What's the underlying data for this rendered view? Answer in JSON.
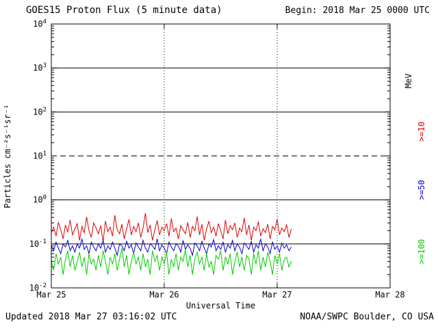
{
  "header": {
    "title": "GOES15 Proton Flux (5 minute data)",
    "begin_label": "Begin: 2018 Mar 25 0000 UTC"
  },
  "footer": {
    "updated": "Updated 2018 Mar 27 03:16:02 UTC",
    "credit": "NOAA/SWPC Boulder, CO USA"
  },
  "axes": {
    "x_title": "Universal Time",
    "y_title": "Particles  cm⁻²s⁻¹sr⁻¹",
    "x_ticks": [
      "Mar 25",
      "Mar 26",
      "Mar 27",
      "Mar 28"
    ],
    "y_tick_exponents": [
      4,
      3,
      2,
      1,
      0,
      -1,
      -2
    ]
  },
  "right_labels": [
    {
      "text": "MeV",
      "color": "#000000"
    },
    {
      "text": ">=10",
      "color": "#dd0000"
    },
    {
      "text": ">=50",
      "color": "#0000cc"
    },
    {
      "text": ">=100",
      "color": "#00cc00"
    }
  ],
  "chart_data": {
    "type": "line",
    "title": "GOES15 Proton Flux (5 minute data)",
    "xlabel": "Universal Time",
    "ylabel": "Particles cm^-2 s^-1 sr^-1",
    "x_axis_start": "2018 Mar 25 0000 UTC",
    "x_axis_end": "2018 Mar 28 0000 UTC",
    "data_end": "2018 Mar 27 03:16 UTC",
    "y_scale": "log",
    "ylim": [
      0.01,
      10000
    ],
    "sample_interval_minutes": 30,
    "gridlines": {
      "solid_at": [
        1000,
        100,
        1,
        0.1
      ],
      "dashed_at": [
        10
      ],
      "vertical_dotted_day_offsets": [
        1,
        2
      ]
    },
    "series": [
      {
        "name": ">=10 MeV",
        "color": "#dd0000",
        "values": [
          0.18,
          0.24,
          0.15,
          0.31,
          0.21,
          0.13,
          0.27,
          0.19,
          0.35,
          0.16,
          0.22,
          0.29,
          0.12,
          0.25,
          0.18,
          0.41,
          0.2,
          0.14,
          0.3,
          0.23,
          0.17,
          0.26,
          0.11,
          0.33,
          0.19,
          0.24,
          0.15,
          0.45,
          0.21,
          0.17,
          0.28,
          0.13,
          0.22,
          0.36,
          0.16,
          0.25,
          0.19,
          0.3,
          0.14,
          0.23,
          0.5,
          0.18,
          0.27,
          0.12,
          0.21,
          0.34,
          0.16,
          0.24,
          0.2,
          0.29,
          0.15,
          0.38,
          0.19,
          0.23,
          0.13,
          0.26,
          0.21,
          0.17,
          0.31,
          0.14,
          0.25,
          0.2,
          0.42,
          0.16,
          0.28,
          0.12,
          0.22,
          0.33,
          0.18,
          0.24,
          0.15,
          0.29,
          0.2,
          0.13,
          0.35,
          0.17,
          0.26,
          0.21,
          0.3,
          0.14,
          0.23,
          0.19,
          0.39,
          0.16,
          0.27,
          0.12,
          0.24,
          0.2,
          0.32,
          0.15,
          0.22,
          0.18,
          0.28,
          0.13,
          0.25,
          0.21,
          0.36,
          0.16,
          0.23,
          0.19,
          0.27,
          0.14,
          0.22
        ]
      },
      {
        "name": ">=50 MeV",
        "color": "#0000cc",
        "values": [
          0.09,
          0.07,
          0.11,
          0.08,
          0.06,
          0.1,
          0.085,
          0.12,
          0.07,
          0.09,
          0.065,
          0.1,
          0.08,
          0.13,
          0.075,
          0.09,
          0.06,
          0.11,
          0.085,
          0.07,
          0.1,
          0.08,
          0.12,
          0.065,
          0.09,
          0.075,
          0.11,
          0.08,
          0.055,
          0.1,
          0.09,
          0.07,
          0.115,
          0.08,
          0.095,
          0.06,
          0.105,
          0.085,
          0.07,
          0.12,
          0.08,
          0.065,
          0.1,
          0.09,
          0.075,
          0.13,
          0.07,
          0.095,
          0.08,
          0.06,
          0.11,
          0.085,
          0.07,
          0.1,
          0.09,
          0.065,
          0.12,
          0.075,
          0.095,
          0.08,
          0.055,
          0.105,
          0.09,
          0.07,
          0.115,
          0.08,
          0.06,
          0.1,
          0.085,
          0.125,
          0.07,
          0.09,
          0.075,
          0.11,
          0.065,
          0.095,
          0.08,
          0.12,
          0.07,
          0.1,
          0.085,
          0.06,
          0.105,
          0.09,
          0.075,
          0.115,
          0.065,
          0.095,
          0.08,
          0.13,
          0.07,
          0.1,
          0.085,
          0.06,
          0.11,
          0.075,
          0.09,
          0.065,
          0.105,
          0.08,
          0.095,
          0.07,
          0.085
        ]
      },
      {
        "name": ">=100 MeV",
        "color": "#00cc00",
        "values": [
          0.04,
          0.025,
          0.06,
          0.035,
          0.05,
          0.02,
          0.045,
          0.07,
          0.03,
          0.055,
          0.025,
          0.04,
          0.065,
          0.03,
          0.05,
          0.02,
          0.06,
          0.035,
          0.045,
          0.025,
          0.055,
          0.03,
          0.07,
          0.04,
          0.02,
          0.05,
          0.035,
          0.06,
          0.025,
          0.045,
          0.08,
          0.03,
          0.055,
          0.02,
          0.04,
          0.065,
          0.035,
          0.05,
          0.025,
          0.06,
          0.03,
          0.045,
          0.02,
          0.07,
          0.04,
          0.055,
          0.025,
          0.05,
          0.035,
          0.065,
          0.02,
          0.045,
          0.03,
          0.06,
          0.025,
          0.05,
          0.04,
          0.075,
          0.03,
          0.055,
          0.02,
          0.045,
          0.065,
          0.035,
          0.05,
          0.025,
          0.06,
          0.03,
          0.04,
          0.02,
          0.055,
          0.045,
          0.07,
          0.025,
          0.05,
          0.035,
          0.06,
          0.02,
          0.04,
          0.065,
          0.03,
          0.05,
          0.025,
          0.055,
          0.045,
          0.02,
          0.06,
          0.035,
          0.07,
          0.025,
          0.05,
          0.03,
          0.065,
          0.04,
          0.02,
          0.055,
          0.035,
          0.06,
          0.025,
          0.045,
          0.05,
          0.03,
          0.04
        ]
      }
    ]
  }
}
